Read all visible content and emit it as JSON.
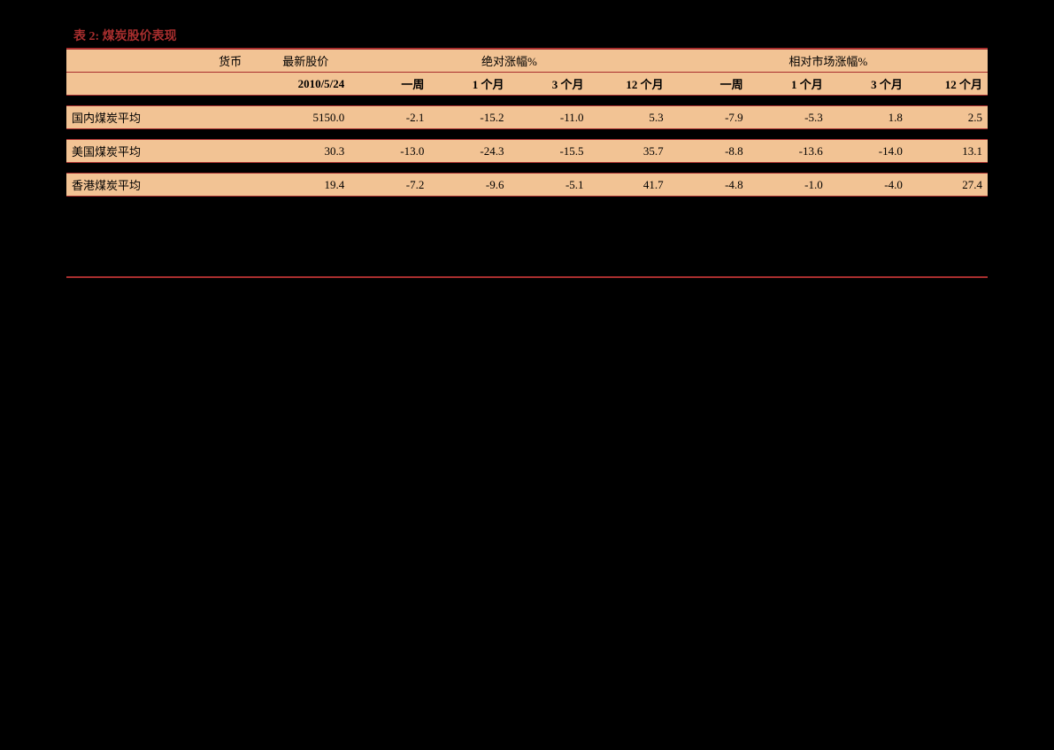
{
  "title": "表 2:  煤炭股价表现",
  "header1": {
    "currency": "货币",
    "latest_price": "最新股价",
    "absolute_change": "绝对涨幅%",
    "relative_change": "相对市场涨幅%"
  },
  "header2": {
    "date": "2010/5/24",
    "week": "一周",
    "month1": "1 个月",
    "month3": "3 个月",
    "month12": "12 个月"
  },
  "rows": [
    {
      "name": "国内煤炭平均",
      "currency": "",
      "price": "5150.0",
      "abs_week": "-2.1",
      "abs_m1": "-15.2",
      "abs_m3": "-11.0",
      "abs_m12": "5.3",
      "rel_week": "-7.9",
      "rel_m1": "-5.3",
      "rel_m3": "1.8",
      "rel_m12": "2.5"
    },
    {
      "name": "美国煤炭平均",
      "currency": "",
      "price": "30.3",
      "abs_week": "-13.0",
      "abs_m1": "-24.3",
      "abs_m3": "-15.5",
      "abs_m12": "35.7",
      "rel_week": "-8.8",
      "rel_m1": "-13.6",
      "rel_m3": "-14.0",
      "rel_m12": "13.1"
    },
    {
      "name": "香港煤炭平均",
      "currency": "",
      "price": "19.4",
      "abs_week": "-7.2",
      "abs_m1": "-9.6",
      "abs_m3": "-5.1",
      "abs_m12": "41.7",
      "rel_week": "-4.8",
      "rel_m1": "-1.0",
      "rel_m3": "-4.0",
      "rel_m12": "27.4"
    }
  ],
  "styling": {
    "title_color": "#a82e2e",
    "border_color": "#a82e2e",
    "row_bg": "#f2c394",
    "page_bg": "#000000",
    "text_color": "#000000",
    "title_fontsize": 14,
    "body_fontsize": 13,
    "gap_after_row0": 378,
    "gap_after_row1": 150,
    "spacer_height": 14
  }
}
